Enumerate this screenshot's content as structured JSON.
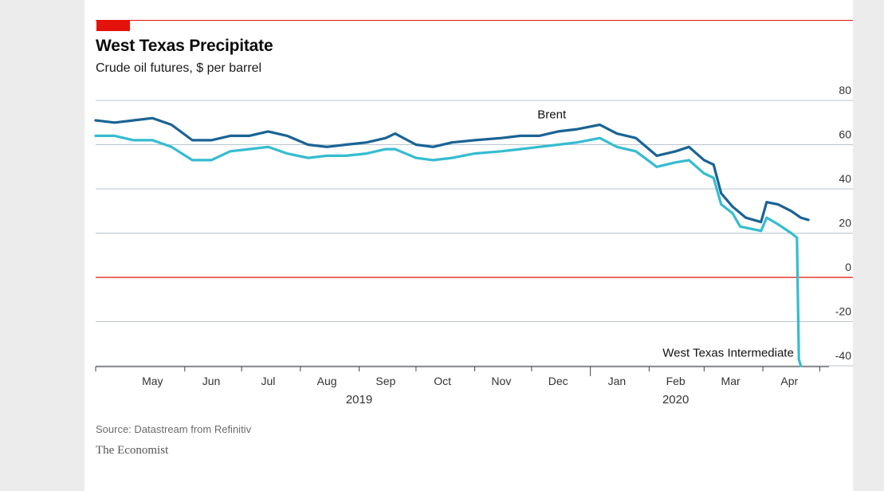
{
  "chart_data": {
    "type": "line",
    "title": "West Texas Precipitate",
    "subtitle": "Crude oil futures, $ per barrel",
    "ylim": [
      -40,
      80
    ],
    "yticks": [
      80,
      60,
      40,
      20,
      0,
      -20,
      -40
    ],
    "xrange": [
      "2019-04-15",
      "2020-04-30"
    ],
    "months": [
      {
        "label": "May",
        "date": "2019-05-15"
      },
      {
        "label": "Jun",
        "date": "2019-06-15"
      },
      {
        "label": "Jul",
        "date": "2019-07-15"
      },
      {
        "label": "Aug",
        "date": "2019-08-15"
      },
      {
        "label": "Sep",
        "date": "2019-09-15"
      },
      {
        "label": "Oct",
        "date": "2019-10-15"
      },
      {
        "label": "Nov",
        "date": "2019-11-15"
      },
      {
        "label": "Dec",
        "date": "2019-12-15"
      },
      {
        "label": "Jan",
        "date": "2020-01-15"
      },
      {
        "label": "Feb",
        "date": "2020-02-15"
      },
      {
        "label": "Mar",
        "date": "2020-03-15"
      },
      {
        "label": "Apr",
        "date": "2020-04-15"
      }
    ],
    "years": [
      {
        "label": "2019",
        "date": "2019-09-01"
      },
      {
        "label": "2020",
        "date": "2020-02-15"
      }
    ],
    "grid": true,
    "zero_line_color": "#e3120b",
    "series": [
      {
        "name": "Brent",
        "color": "#1a6394",
        "points": [
          [
            "2019-04-15",
            71
          ],
          [
            "2019-04-25",
            70
          ],
          [
            "2019-05-05",
            71
          ],
          [
            "2019-05-15",
            72
          ],
          [
            "2019-05-25",
            69
          ],
          [
            "2019-06-05",
            62
          ],
          [
            "2019-06-15",
            62
          ],
          [
            "2019-06-25",
            64
          ],
          [
            "2019-07-05",
            64
          ],
          [
            "2019-07-15",
            66
          ],
          [
            "2019-07-25",
            64
          ],
          [
            "2019-08-05",
            60
          ],
          [
            "2019-08-15",
            59
          ],
          [
            "2019-08-25",
            60
          ],
          [
            "2019-09-05",
            61
          ],
          [
            "2019-09-15",
            63
          ],
          [
            "2019-09-20",
            65
          ],
          [
            "2019-10-01",
            60
          ],
          [
            "2019-10-10",
            59
          ],
          [
            "2019-10-20",
            61
          ],
          [
            "2019-11-01",
            62
          ],
          [
            "2019-11-15",
            63
          ],
          [
            "2019-11-25",
            64
          ],
          [
            "2019-12-05",
            64
          ],
          [
            "2019-12-15",
            66
          ],
          [
            "2019-12-25",
            67
          ],
          [
            "2020-01-06",
            69
          ],
          [
            "2020-01-15",
            65
          ],
          [
            "2020-01-25",
            63
          ],
          [
            "2020-02-05",
            55
          ],
          [
            "2020-02-15",
            57
          ],
          [
            "2020-02-22",
            59
          ],
          [
            "2020-03-01",
            53
          ],
          [
            "2020-03-06",
            51
          ],
          [
            "2020-03-10",
            38
          ],
          [
            "2020-03-16",
            32
          ],
          [
            "2020-03-23",
            27
          ],
          [
            "2020-03-31",
            25
          ],
          [
            "2020-04-03",
            34
          ],
          [
            "2020-04-09",
            33
          ],
          [
            "2020-04-16",
            30
          ],
          [
            "2020-04-21",
            27
          ],
          [
            "2020-04-25",
            26
          ]
        ]
      },
      {
        "name": "West Texas Intermediate",
        "color": "#35bcd0",
        "points": [
          [
            "2019-04-15",
            64
          ],
          [
            "2019-04-25",
            64
          ],
          [
            "2019-05-05",
            62
          ],
          [
            "2019-05-15",
            62
          ],
          [
            "2019-05-25",
            59
          ],
          [
            "2019-06-05",
            53
          ],
          [
            "2019-06-15",
            53
          ],
          [
            "2019-06-25",
            57
          ],
          [
            "2019-07-05",
            58
          ],
          [
            "2019-07-15",
            59
          ],
          [
            "2019-07-25",
            56
          ],
          [
            "2019-08-05",
            54
          ],
          [
            "2019-08-15",
            55
          ],
          [
            "2019-08-25",
            55
          ],
          [
            "2019-09-05",
            56
          ],
          [
            "2019-09-15",
            58
          ],
          [
            "2019-09-20",
            58
          ],
          [
            "2019-10-01",
            54
          ],
          [
            "2019-10-10",
            53
          ],
          [
            "2019-10-20",
            54
          ],
          [
            "2019-11-01",
            56
          ],
          [
            "2019-11-15",
            57
          ],
          [
            "2019-11-25",
            58
          ],
          [
            "2019-12-05",
            59
          ],
          [
            "2019-12-15",
            60
          ],
          [
            "2019-12-25",
            61
          ],
          [
            "2020-01-06",
            63
          ],
          [
            "2020-01-15",
            59
          ],
          [
            "2020-01-25",
            57
          ],
          [
            "2020-02-05",
            50
          ],
          [
            "2020-02-15",
            52
          ],
          [
            "2020-02-22",
            53
          ],
          [
            "2020-03-01",
            47
          ],
          [
            "2020-03-06",
            45
          ],
          [
            "2020-03-10",
            33
          ],
          [
            "2020-03-16",
            29
          ],
          [
            "2020-03-20",
            23
          ],
          [
            "2020-03-31",
            21
          ],
          [
            "2020-04-03",
            27
          ],
          [
            "2020-04-09",
            24
          ],
          [
            "2020-04-16",
            20
          ],
          [
            "2020-04-19",
            18
          ],
          [
            "2020-04-20",
            -37
          ],
          [
            "2020-04-21",
            -40
          ]
        ]
      }
    ]
  },
  "footer": {
    "source": "Source: Datastream from Refinitiv",
    "brand": "The Economist"
  }
}
